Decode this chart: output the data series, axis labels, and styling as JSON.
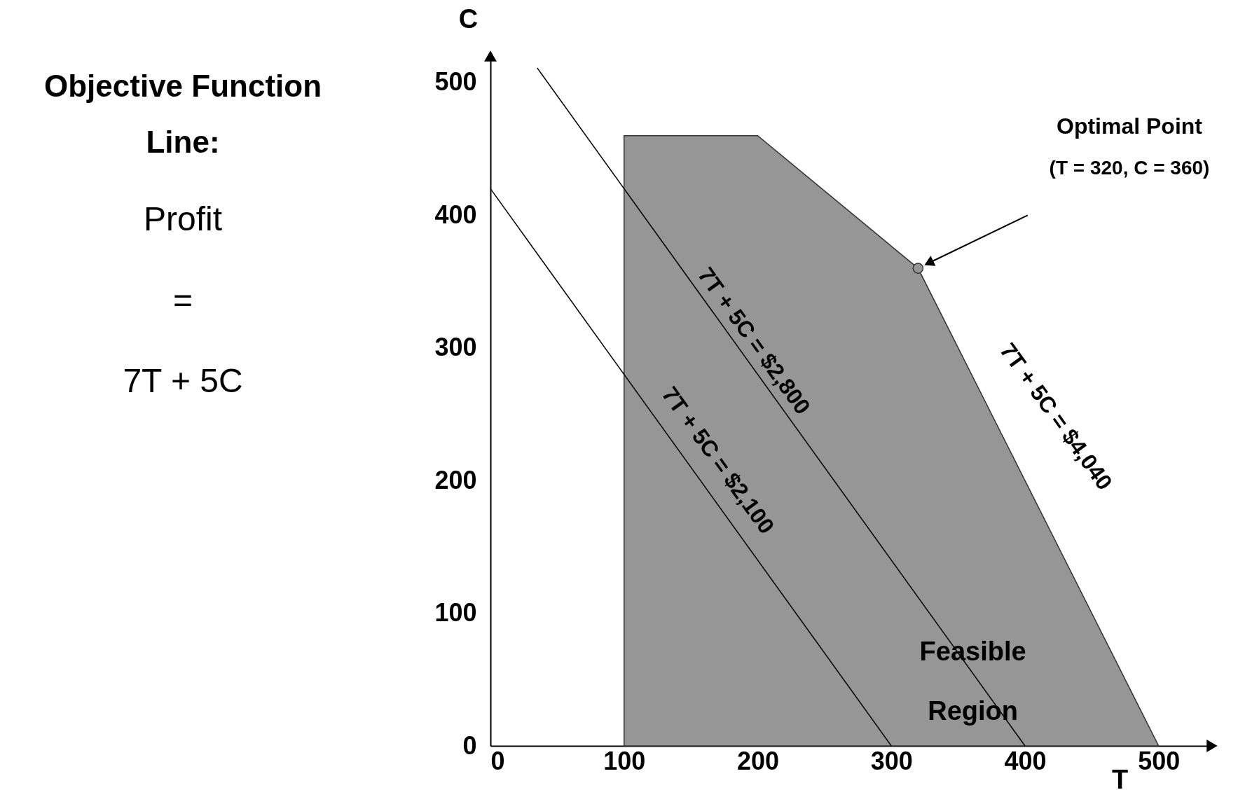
{
  "chart_data": {
    "type": "line",
    "xlabel": "T",
    "ylabel": "C",
    "xlim": [
      0,
      540
    ],
    "ylim": [
      0,
      520
    ],
    "xticks": [
      0,
      100,
      200,
      300,
      400,
      500
    ],
    "yticks": [
      0,
      100,
      200,
      300,
      400,
      500
    ],
    "grid": false,
    "line_style": "solid",
    "series": [
      {
        "type": "area",
        "color": "#969696",
        "x": [
          100,
          200,
          320,
          500
        ],
        "values": [
          460,
          460,
          360,
          0
        ]
      },
      {
        "color": "#000000",
        "x": [
          0,
          300
        ],
        "values": [
          420,
          0
        ]
      },
      {
        "color": "#000000",
        "x": [
          35,
          400
        ],
        "values": [
          511,
          0
        ]
      },
      {
        "type": "scatter",
        "color": "#969696",
        "x": [
          320
        ],
        "values": [
          360
        ]
      }
    ],
    "annotations": [
      "Objective Function Line:",
      "Profit",
      "=",
      "7T + 5C",
      "Optimal Point",
      "(T = 320, C = 360)",
      "Feasible Region",
      "7T + 5C = $2,100",
      "7T + 5C = $2,800",
      "7T + 5C = $4,040"
    ]
  }
}
